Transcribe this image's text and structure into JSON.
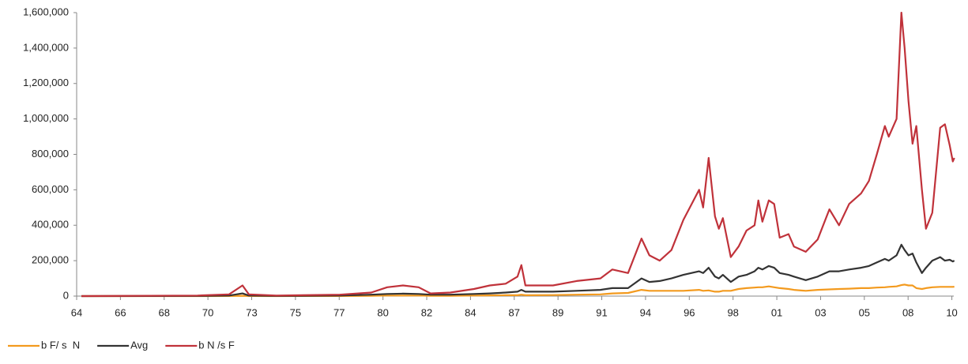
{
  "chart_data": {
    "type": "line",
    "x": [
      1964.75,
      1970.8,
      1972.44,
      1973.14,
      1973.47,
      1974.91,
      1978.21,
      1979.85,
      1980.68,
      1981.5,
      1982.32,
      1982.94,
      1983.97,
      1985.2,
      1986.03,
      1986.85,
      1987.47,
      1987.67,
      1987.88,
      1989.32,
      1990.55,
      1991.79,
      1992.41,
      1993.23,
      1993.93,
      1994.34,
      1994.88,
      1995.49,
      1996.11,
      1996.93,
      1997.14,
      1997.43,
      1997.76,
      1997.96,
      1998.17,
      1998.58,
      1998.99,
      1999.4,
      1999.82,
      2000.02,
      2000.23,
      2000.56,
      2000.84,
      2001.13,
      2001.59,
      2001.87,
      2002.49,
      2003.11,
      2003.72,
      2004.22,
      2004.75,
      2005.37,
      2005.78,
      2006.19,
      2006.61,
      2006.81,
      2007.22,
      2007.47,
      2007.64,
      2007.84,
      2008.05,
      2008.25,
      2008.54,
      2008.75,
      2009.08,
      2009.49,
      2009.74,
      2009.99,
      2010.15,
      2010.23
    ],
    "series": [
      {
        "name": "b F/ s  N",
        "color": "#f39a1e",
        "values": [
          0,
          200,
          500,
          2000,
          500,
          200,
          500,
          2000,
          3000,
          3000,
          3000,
          2000,
          2000,
          3000,
          4000,
          5000,
          5000,
          8000,
          5000,
          6000,
          8000,
          10000,
          15000,
          18000,
          35000,
          30000,
          30000,
          30000,
          30000,
          35000,
          30000,
          32000,
          25000,
          25000,
          30000,
          30000,
          40000,
          45000,
          48000,
          50000,
          50000,
          55000,
          50000,
          45000,
          40000,
          35000,
          30000,
          35000,
          38000,
          40000,
          42000,
          45000,
          45000,
          48000,
          50000,
          52000,
          55000,
          62000,
          65000,
          60000,
          60000,
          45000,
          40000,
          45000,
          50000,
          52000,
          52000,
          52000,
          52000,
          53000
        ]
      },
      {
        "name": "Avg",
        "color": "#333333",
        "values": [
          0,
          1000,
          3000,
          15000,
          3000,
          1000,
          3000,
          8000,
          12000,
          14000,
          12000,
          8000,
          8000,
          12000,
          15000,
          20000,
          25000,
          35000,
          25000,
          25000,
          30000,
          35000,
          45000,
          45000,
          100000,
          80000,
          85000,
          100000,
          120000,
          140000,
          130000,
          160000,
          110000,
          100000,
          120000,
          80000,
          110000,
          120000,
          140000,
          160000,
          150000,
          170000,
          160000,
          130000,
          120000,
          110000,
          90000,
          110000,
          140000,
          140000,
          150000,
          160000,
          170000,
          190000,
          210000,
          200000,
          230000,
          290000,
          260000,
          230000,
          240000,
          190000,
          130000,
          160000,
          200000,
          220000,
          200000,
          205000,
          195000,
          200000
        ]
      },
      {
        "name": "b N /s F",
        "color": "#c0323a",
        "values": [
          0,
          3000,
          10000,
          60000,
          10000,
          3000,
          8000,
          20000,
          50000,
          60000,
          50000,
          15000,
          20000,
          40000,
          60000,
          70000,
          110000,
          175000,
          60000,
          60000,
          85000,
          100000,
          150000,
          130000,
          325000,
          230000,
          200000,
          260000,
          430000,
          600000,
          500000,
          780000,
          450000,
          380000,
          440000,
          220000,
          280000,
          370000,
          400000,
          540000,
          420000,
          540000,
          520000,
          330000,
          350000,
          280000,
          250000,
          320000,
          490000,
          400000,
          520000,
          580000,
          650000,
          800000,
          960000,
          900000,
          1000000,
          1600000,
          1400000,
          1100000,
          860000,
          960000,
          600000,
          380000,
          470000,
          950000,
          970000,
          850000,
          760000,
          780000
        ]
      }
    ],
    "xlim": [
      1964.5,
      2010.2
    ],
    "xticks": [
      {
        "value": 1964.5,
        "label": "64"
      },
      {
        "value": 1966.78,
        "label": "66"
      },
      {
        "value": 1969.06,
        "label": "68"
      },
      {
        "value": 1971.34,
        "label": "70"
      },
      {
        "value": 1973.62,
        "label": "73"
      },
      {
        "value": 1975.9,
        "label": "75"
      },
      {
        "value": 1978.18,
        "label": "77"
      },
      {
        "value": 1980.46,
        "label": "80"
      },
      {
        "value": 1982.74,
        "label": "82"
      },
      {
        "value": 1985.02,
        "label": "84"
      },
      {
        "value": 1987.3,
        "label": "87"
      },
      {
        "value": 1989.58,
        "label": "89"
      },
      {
        "value": 1991.86,
        "label": "91"
      },
      {
        "value": 1994.14,
        "label": "94"
      },
      {
        "value": 1996.42,
        "label": "96"
      },
      {
        "value": 1998.7,
        "label": "98"
      },
      {
        "value": 2000.98,
        "label": "01"
      },
      {
        "value": 2003.26,
        "label": "03"
      },
      {
        "value": 2005.54,
        "label": "05"
      },
      {
        "value": 2007.82,
        "label": "08"
      },
      {
        "value": 2010.1,
        "label": "10"
      }
    ],
    "ylim": [
      0,
      1600000
    ],
    "yticks": [
      0,
      {
        "value": 200000,
        "label": "200,000"
      },
      {
        "value": 400000,
        "label": "400,000"
      },
      {
        "value": 600000,
        "label": "600,000"
      },
      {
        "value": 800000,
        "label": "800,000"
      },
      {
        "value": 1000000,
        "label": "1,000,000"
      },
      {
        "value": 1200000,
        "label": "1,200,000"
      },
      {
        "value": 1400000,
        "label": "1,400,000"
      },
      {
        "value": 1600000,
        "label": "1,600,000"
      }
    ],
    "grid": false,
    "legend": "bottom-left"
  }
}
